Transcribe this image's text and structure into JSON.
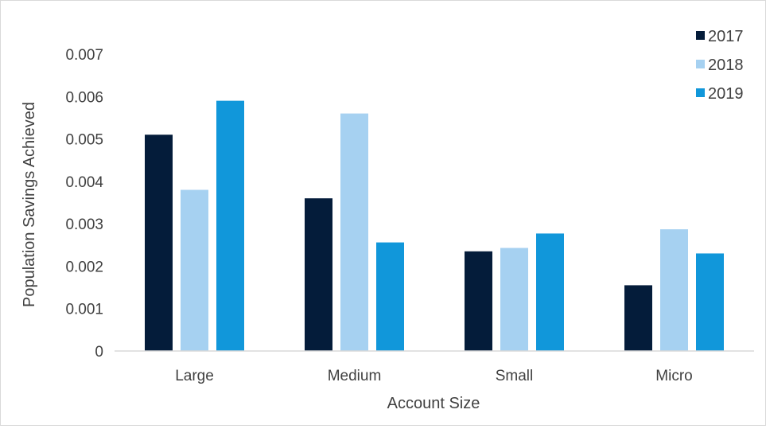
{
  "chart_data": {
    "type": "bar",
    "categories": [
      "Large",
      "Medium",
      "Small",
      "Micro"
    ],
    "series": [
      {
        "name": "2017",
        "color": "#041C3A",
        "values": [
          0.0051,
          0.0036,
          0.00235,
          0.00155
        ]
      },
      {
        "name": "2018",
        "color": "#A6D1F1",
        "values": [
          0.0038,
          0.0056,
          0.00243,
          0.00287
        ]
      },
      {
        "name": "2019",
        "color": "#1197DA",
        "values": [
          0.0059,
          0.00256,
          0.00277,
          0.0023
        ]
      }
    ],
    "xlabel": "Account Size",
    "ylabel": "Population Savings Achieved",
    "ylim": [
      0,
      0.007
    ],
    "yticks": [
      "0",
      "0.001",
      "0.002",
      "0.003",
      "0.004",
      "0.005",
      "0.006",
      "0.007"
    ],
    "ytick_values": [
      0,
      0.001,
      0.002,
      0.003,
      0.004,
      0.005,
      0.006,
      0.007
    ],
    "grid": false,
    "legend_position": "top-right"
  }
}
